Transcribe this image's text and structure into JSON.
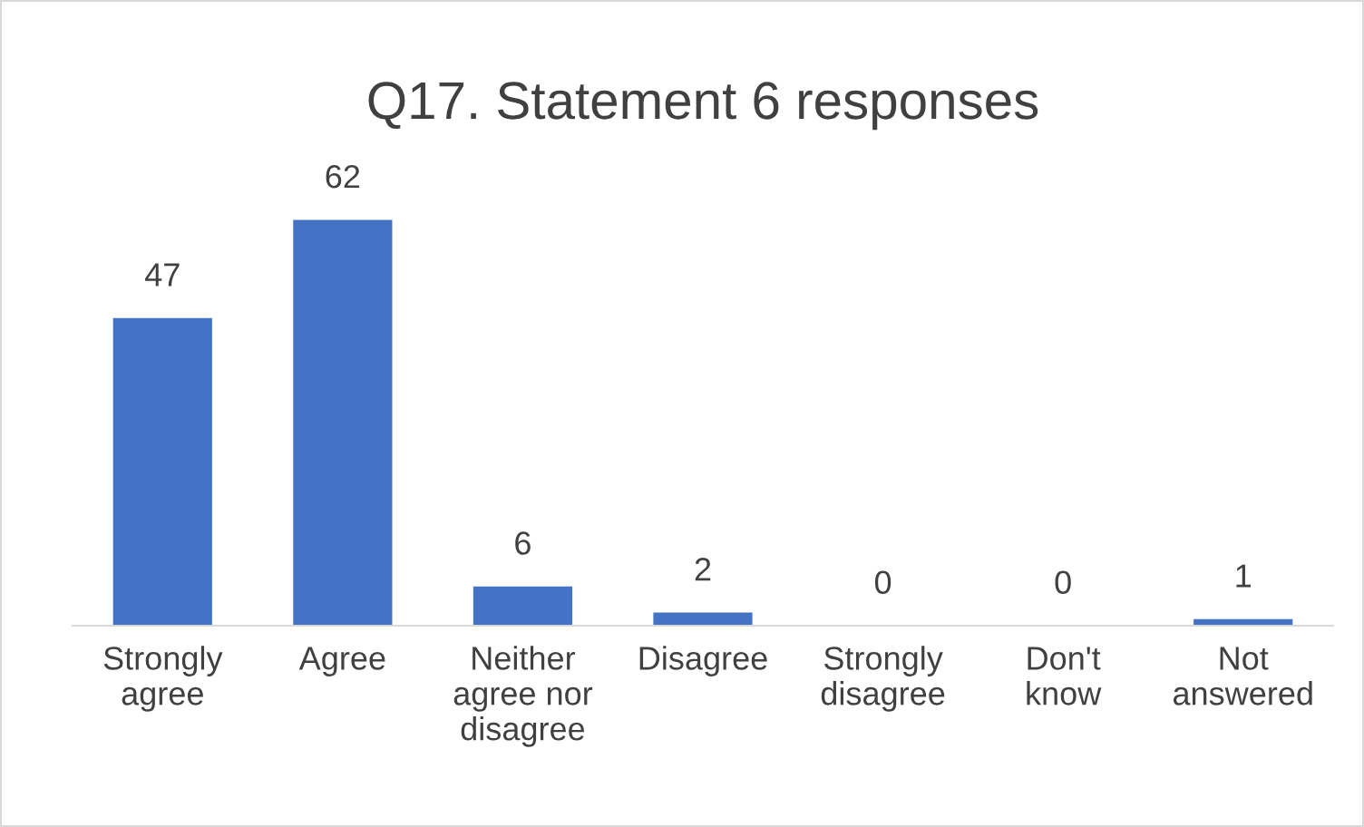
{
  "chart_data": {
    "type": "bar",
    "title": "Q17. Statement 6 responses",
    "categories": [
      "Strongly\nagree",
      "Agree",
      "Neither\nagree nor\ndisagree",
      "Disagree",
      "Strongly\ndisagree",
      "Don't\nknow",
      "Not\nanswered"
    ],
    "values": [
      47,
      62,
      6,
      2,
      0,
      0,
      1
    ],
    "color": "#4472c4",
    "data_labels": true,
    "grid": false,
    "legend": false
  }
}
